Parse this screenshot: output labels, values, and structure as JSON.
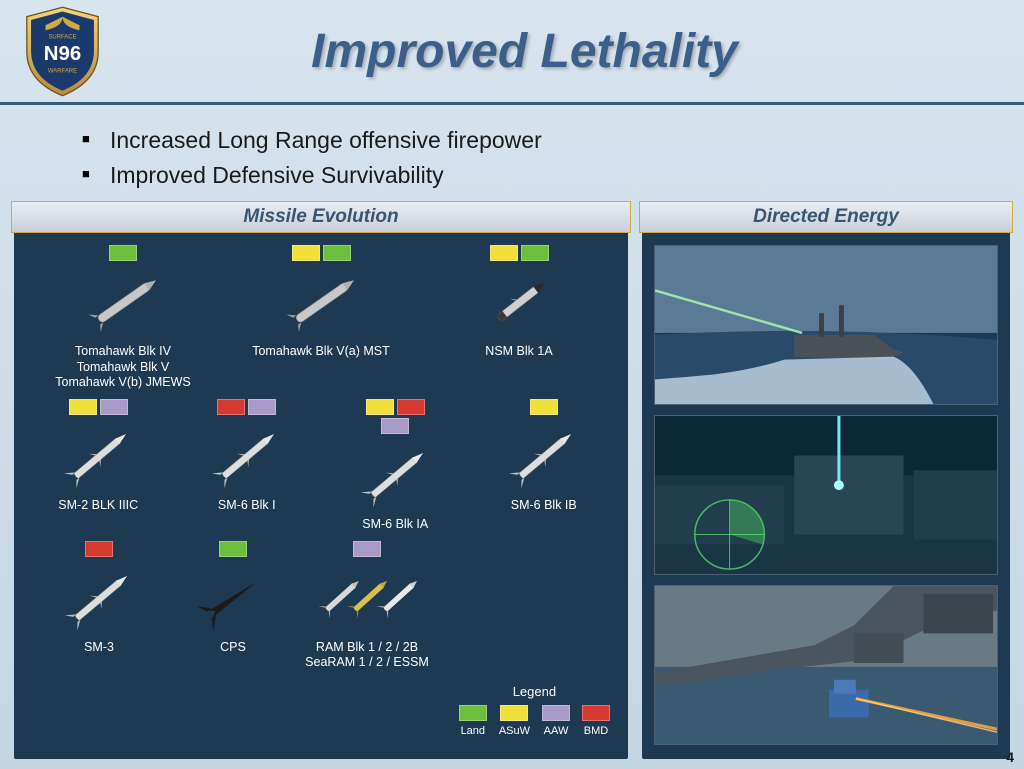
{
  "header": {
    "title": "Improved Lethality",
    "logo": {
      "text_top": "SURFACE",
      "text_main": "N96",
      "text_bottom": "WARFARE"
    }
  },
  "bullets": [
    "Increased Long Range offensive firepower",
    "Improved Defensive Survivability"
  ],
  "colors": {
    "land": "#6fbf3f",
    "asuw": "#f2e03a",
    "aaw": "#a89ac8",
    "bmd": "#d43a2f",
    "panel_bg": "#1d3a52",
    "title_color": "#3b5f8a",
    "header_border": "#d4a843"
  },
  "panels": {
    "missile_evolution": {
      "title": "Missile Evolution"
    },
    "directed_energy": {
      "title": "Directed Energy"
    }
  },
  "missiles": {
    "row1": [
      {
        "label": "Tomahawk Blk IV\nTomahawk Blk V\nTomahawk V(b) JMEWS",
        "tags": [
          "land"
        ],
        "type": "cruise"
      },
      {
        "label": "Tomahawk Blk V(a) MST",
        "tags": [
          "asuw",
          "land"
        ],
        "type": "cruise"
      },
      {
        "label": "NSM Blk 1A",
        "tags": [
          "asuw",
          "land"
        ],
        "type": "nsm"
      }
    ],
    "row2": [
      {
        "label": "SM-2 BLK IIIC",
        "tags": [
          "asuw",
          "aaw"
        ],
        "type": "sm"
      },
      {
        "label": "SM-6 Blk I",
        "tags": [
          "bmd",
          "aaw"
        ],
        "type": "sm"
      },
      {
        "label": "SM-6 Blk IA",
        "tags": [
          "asuw",
          "bmd",
          "aaw"
        ],
        "type": "sm"
      },
      {
        "label": "SM-6 Blk IB",
        "tags": [
          "asuw"
        ],
        "type": "sm"
      }
    ],
    "row3": [
      {
        "label": "SM-3",
        "tags": [
          "bmd"
        ],
        "type": "sm"
      },
      {
        "label": "CPS",
        "tags": [
          "land"
        ],
        "type": "cps"
      },
      {
        "label": "RAM Blk 1 / 2 / 2B\nSeaRAM 1 / 2 / ESSM",
        "tags": [
          "aaw"
        ],
        "type": "ram"
      }
    ]
  },
  "legend": {
    "title": "Legend",
    "items": [
      {
        "key": "land",
        "label": "Land"
      },
      {
        "key": "asuw",
        "label": "ASuW"
      },
      {
        "key": "aaw",
        "label": "AAW"
      },
      {
        "key": "bmd",
        "label": "BMD"
      }
    ]
  },
  "page_number": "4"
}
